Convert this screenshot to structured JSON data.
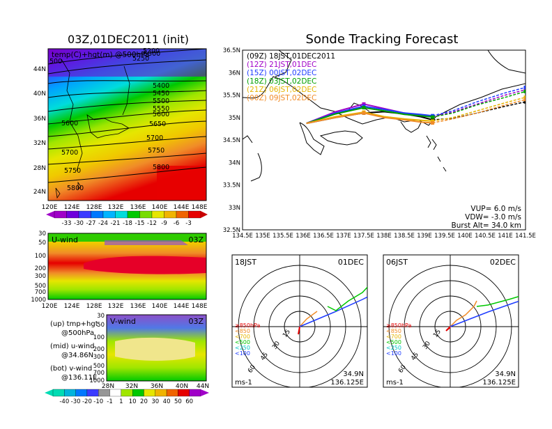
{
  "left_title": "03Z,01DEC2011 (init)",
  "right_title": "Sonde Tracking Forecast",
  "top_map": {
    "label": "temp(C)+hgt(m) @500hPa",
    "x_ticks": [
      "120E",
      "124E",
      "128E",
      "132E",
      "136E",
      "140E",
      "144E",
      "148E"
    ],
    "y_ticks": [
      "24N",
      "28N",
      "32N",
      "36N",
      "40N",
      "44N"
    ],
    "height_labels": [
      "5200",
      "5250",
      "5300",
      "5400",
      "5450",
      "5500",
      "5550",
      "5600",
      "5650",
      "5700",
      "5750",
      "5800"
    ],
    "height_labels_left": [
      "500",
      "5600",
      "5700",
      "5750",
      "5800"
    ],
    "colorbar": [
      "-33",
      "-30",
      "-27",
      "-24",
      "-21",
      "-18",
      "-15",
      "-12",
      "-9",
      "-6",
      "-3"
    ]
  },
  "u_wind": {
    "label": "U-wind",
    "time": "03Z",
    "y_ticks": [
      "30",
      "50",
      "100",
      "200",
      "300",
      "500",
      "700",
      "1000"
    ],
    "x_ticks": [
      "120E",
      "124E",
      "128E",
      "132E",
      "136E",
      "140E",
      "144E",
      "148E"
    ]
  },
  "v_wind": {
    "label": "V-wind",
    "time": "03Z",
    "y_ticks": [
      "30",
      "50",
      "100",
      "200",
      "300",
      "500",
      "700",
      "1000"
    ],
    "x_ticks": [
      "28N",
      "32N",
      "36N",
      "40N",
      "44N"
    ]
  },
  "wind_colorbar": [
    "-40",
    "-30",
    "-20",
    "-10",
    "-1",
    "1",
    "10",
    "20",
    "30",
    "40",
    "50",
    "60"
  ],
  "legend_notes": [
    {
      "a": "(up) tmp+hgt",
      "b": "@500hPa"
    },
    {
      "a": "(mid) u-wind",
      "b": "@34.86N"
    },
    {
      "a": "(bot) v-wind",
      "b": "@136.11E"
    }
  ],
  "track_map": {
    "x_ticks": [
      "134.5E",
      "135E",
      "135.5E",
      "136E",
      "136.5E",
      "137E",
      "137.5E",
      "138E",
      "138.5E",
      "139E",
      "139.5E",
      "140E",
      "140.5E",
      "141E",
      "141.5E"
    ],
    "y_ticks": [
      "36.5N",
      "36N",
      "35.5N",
      "35N",
      "34.5N",
      "34N",
      "33.5N",
      "33N",
      "32.5N"
    ],
    "legend": [
      {
        "label": "(09Z)  18JST,01DEC2011",
        "color": "#000000"
      },
      {
        "label": "(12Z)  21JST,01DEC",
        "color": "#a000c8"
      },
      {
        "label": "(15Z)  00JST,02DEC",
        "color": "#1e3cff"
      },
      {
        "label": "(18Z)  03JST,02DEC",
        "color": "#00a000"
      },
      {
        "label": "(21Z)  06JST,02DEC",
        "color": "#e6b400"
      },
      {
        "label": "(00Z)  09JST,02DEC",
        "color": "#f08c28"
      }
    ],
    "params": [
      "VUP= 6.0 m/s",
      "VDW= -3.0 m/s",
      "Burst Alt= 34.0 km"
    ]
  },
  "polar_left": {
    "time_label": "18JST",
    "date_label": "01DEC",
    "ring_labels": [
      "15",
      "30",
      "45",
      "60"
    ],
    "lat": "34.9N",
    "lon": "136.125E",
    "unit": "ms-1"
  },
  "polar_right": {
    "time_label": "06JST",
    "date_label": "02DEC",
    "ring_labels": [
      "15",
      "30",
      "45",
      "60"
    ],
    "lat": "34.9N",
    "lon": "136.125E",
    "unit": "ms-1"
  },
  "pressure_legend": [
    {
      "label": "≥850hPa",
      "color": "#e60000"
    },
    {
      "label": "<850",
      "color": "#f08c28"
    },
    {
      "label": "<700",
      "color": "#e6b400"
    },
    {
      "label": "<500",
      "color": "#00c800"
    },
    {
      "label": "<250",
      "color": "#00c8c8"
    },
    {
      "label": "<100",
      "color": "#1e3cff"
    }
  ],
  "chart_data": {
    "type": "line",
    "title": "Sonde Tracking Forecast",
    "xlim": [
      134.5,
      141.5
    ],
    "ylim": [
      32.5,
      36.5
    ],
    "series": [
      {
        "name": "(09Z) 18JST,01DEC2011",
        "color": "#000000",
        "x": [
          136.08,
          136.8,
          137.5,
          138.0,
          138.5,
          138.9,
          139.2,
          139.7,
          140.3,
          141.0,
          141.5
        ],
        "y": [
          34.87,
          35.0,
          35.1,
          35.13,
          35.08,
          35.02,
          34.95,
          34.98,
          35.1,
          35.25,
          35.35
        ]
      },
      {
        "name": "(12Z) 21JST,01DEC",
        "color": "#a000c8",
        "x": [
          136.08,
          136.8,
          137.5,
          138.0,
          138.5,
          138.9,
          139.2,
          139.7,
          140.3,
          141.0,
          141.5
        ],
        "y": [
          34.87,
          35.13,
          35.3,
          35.2,
          35.1,
          35.05,
          35.02,
          35.12,
          35.3,
          35.5,
          35.62
        ]
      },
      {
        "name": "(15Z) 00JST,02DEC",
        "color": "#1e3cff",
        "x": [
          136.08,
          136.8,
          137.5,
          138.0,
          138.5,
          138.9,
          139.2,
          139.7,
          140.3,
          141.0,
          141.5
        ],
        "y": [
          34.87,
          35.1,
          35.25,
          35.18,
          35.1,
          35.07,
          35.04,
          35.15,
          35.35,
          35.55,
          35.67
        ]
      },
      {
        "name": "(18Z) 03JST,02DEC",
        "color": "#00a000",
        "x": [
          136.08,
          136.8,
          137.5,
          138.0,
          138.5,
          138.9,
          139.2,
          139.7,
          140.3,
          141.0,
          141.5
        ],
        "y": [
          34.87,
          35.08,
          35.22,
          35.15,
          35.07,
          35.04,
          35.01,
          35.1,
          35.28,
          35.45,
          35.58
        ]
      },
      {
        "name": "(21Z) 06JST,02DEC",
        "color": "#e6b400",
        "x": [
          136.08,
          136.8,
          137.5,
          138.0,
          138.5,
          138.9,
          139.2,
          139.7,
          140.3,
          141.0,
          141.5
        ],
        "y": [
          34.87,
          35.02,
          35.12,
          35.02,
          34.97,
          34.94,
          34.92,
          35.0,
          35.15,
          35.33,
          35.45
        ]
      },
      {
        "name": "(00Z) 09JST,02DEC",
        "color": "#f08c28",
        "x": [
          136.08,
          136.8,
          137.5,
          138.0,
          138.5,
          138.9,
          139.2,
          139.7,
          140.3,
          141.0,
          141.5
        ],
        "y": [
          34.87,
          35.0,
          35.1,
          35.0,
          34.95,
          34.9,
          34.88,
          34.97,
          35.1,
          35.28,
          35.4
        ]
      }
    ]
  }
}
